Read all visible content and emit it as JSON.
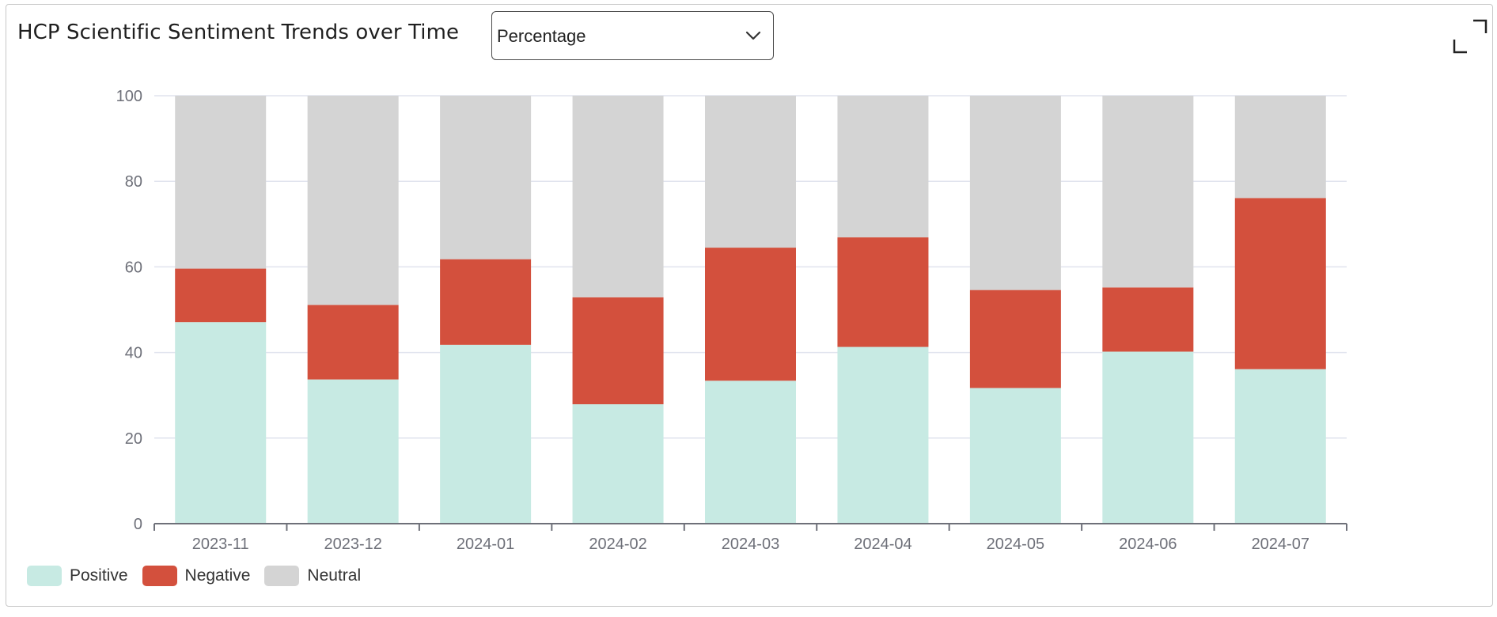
{
  "header": {
    "title": "HCP Scientific Sentiment Trends over Time",
    "mode_select": {
      "selected": "Percentage"
    },
    "expand_icon": "expand-icon"
  },
  "colors": {
    "positive": "#c7eae3",
    "negative": "#d3503d",
    "neutral": "#d4d4d4",
    "grid": "#e0e3ee",
    "axis": "#6e7079"
  },
  "chart_data": {
    "type": "bar",
    "stacked": true,
    "categories": [
      "2023-11",
      "2023-12",
      "2024-01",
      "2024-02",
      "2024-03",
      "2024-04",
      "2024-05",
      "2024-06",
      "2024-07"
    ],
    "series": [
      {
        "name": "Positive",
        "values": [
          47.1,
          33.7,
          41.8,
          27.9,
          33.4,
          41.3,
          31.7,
          40.2,
          36.1
        ]
      },
      {
        "name": "Negative",
        "values": [
          12.5,
          17.4,
          20.0,
          25.0,
          31.1,
          25.6,
          22.9,
          15.0,
          40.0
        ]
      },
      {
        "name": "Neutral",
        "values": [
          40.4,
          48.9,
          38.2,
          47.1,
          35.5,
          33.1,
          45.4,
          44.8,
          23.9
        ]
      }
    ],
    "yticks": [
      "0",
      "20",
      "40",
      "60",
      "80",
      "100"
    ],
    "ylim": [
      0,
      100
    ],
    "grid": true,
    "legend": "bottom-left"
  }
}
